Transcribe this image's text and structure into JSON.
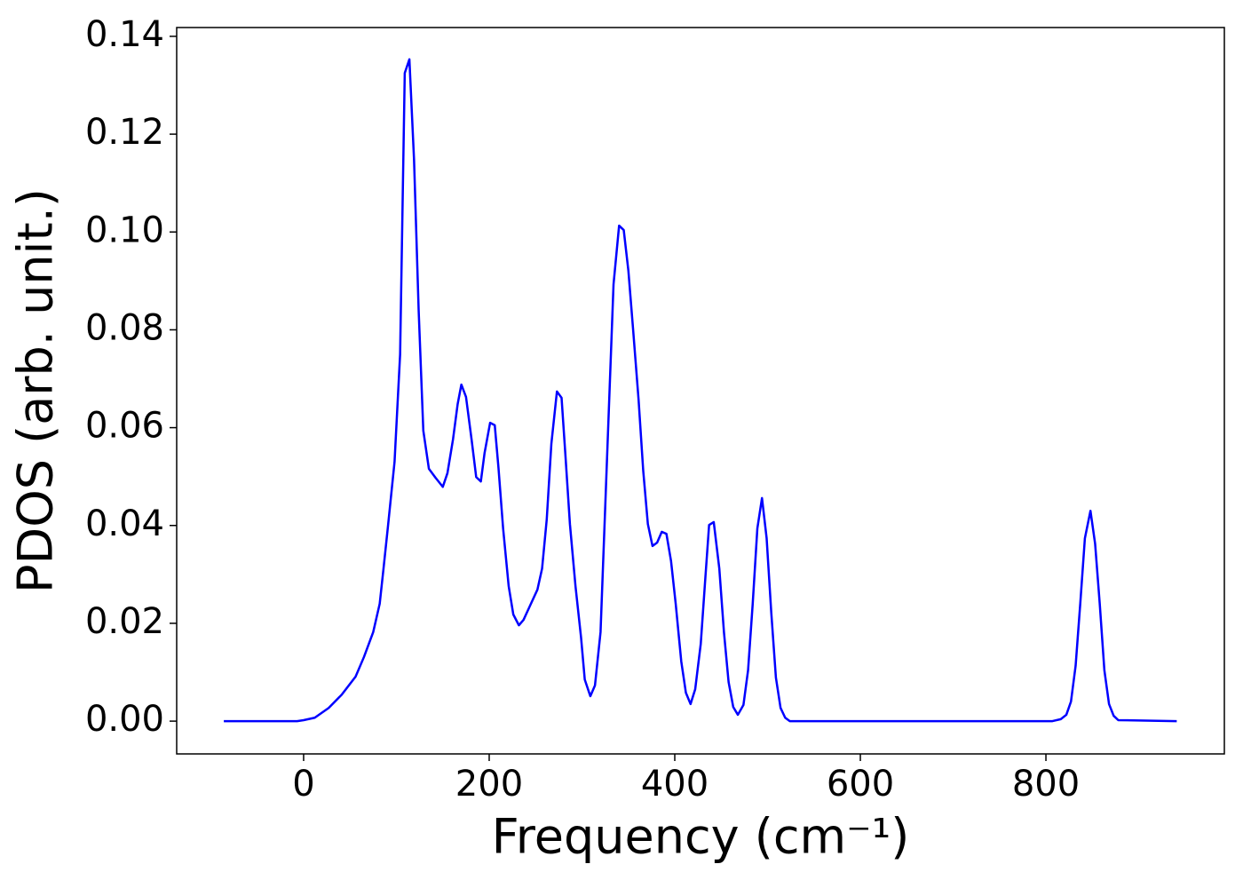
{
  "chart_data": {
    "type": "line",
    "x_label": "Frequency (cm⁻¹)",
    "y_label": "PDOS (arb. unit.)",
    "xlim": [
      -136.8,
      992.3
    ],
    "ylim": [
      -0.0067,
      0.1418
    ],
    "xticks": [
      0,
      200,
      400,
      600,
      800
    ],
    "yticks": [
      {
        "value": 0,
        "label": "0.00"
      },
      {
        "value": 0.02,
        "label": "0.02"
      },
      {
        "value": 0.04,
        "label": "0.04"
      },
      {
        "value": 0.06,
        "label": "0.06"
      },
      {
        "value": 0.08,
        "label": "0.08"
      },
      {
        "value": 0.1,
        "label": "0.10"
      },
      {
        "value": 0.12,
        "label": "0.12"
      },
      {
        "value": 0.14,
        "label": "0.14"
      }
    ],
    "grid": false,
    "series": [
      {
        "color": "#0000ff",
        "x": [
          -86,
          -7,
          0,
          12,
          27,
          41,
          56,
          65,
          75,
          82,
          86,
          91,
          98,
          104,
          109,
          114,
          119,
          124,
          129,
          135,
          142,
          150,
          155,
          161,
          166,
          170,
          175,
          181,
          186,
          191,
          195,
          201,
          206,
          210,
          215,
          221,
          226,
          232,
          237,
          244,
          252,
          257,
          262,
          267,
          273,
          278,
          282,
          287,
          293,
          299,
          303,
          309,
          314,
          320,
          324,
          329,
          334,
          340,
          345,
          350,
          355,
          361,
          366,
          371,
          376,
          381,
          386,
          391,
          396,
          401,
          407,
          412,
          417,
          422,
          428,
          433,
          437,
          442,
          448,
          453,
          458,
          463,
          468,
          474,
          479,
          484,
          489,
          494,
          499,
          504,
          509,
          514,
          519,
          524,
          807,
          816,
          822,
          827,
          832,
          837,
          842,
          848,
          853,
          858,
          863,
          868,
          873,
          878,
          941
        ],
        "values": [
          0,
          0,
          0.0002,
          0.0007,
          0.0027,
          0.0054,
          0.0091,
          0.0131,
          0.0182,
          0.024,
          0.031,
          0.04,
          0.053,
          0.075,
          0.1325,
          0.1353,
          0.1148,
          0.0839,
          0.0594,
          0.0516,
          0.0498,
          0.0479,
          0.0507,
          0.0576,
          0.0648,
          0.0688,
          0.0663,
          0.0576,
          0.0499,
          0.049,
          0.0548,
          0.061,
          0.0605,
          0.0518,
          0.0394,
          0.0276,
          0.0218,
          0.0196,
          0.0207,
          0.0236,
          0.0269,
          0.0312,
          0.0412,
          0.0567,
          0.0674,
          0.0661,
          0.0548,
          0.0403,
          0.0276,
          0.0171,
          0.0085,
          0.0051,
          0.0073,
          0.0182,
          0.0385,
          0.0639,
          0.0893,
          0.1013,
          0.1004,
          0.0921,
          0.0803,
          0.0657,
          0.0512,
          0.0403,
          0.0358,
          0.0365,
          0.0387,
          0.0383,
          0.0327,
          0.024,
          0.0122,
          0.0058,
          0.0035,
          0.0065,
          0.0158,
          0.0294,
          0.0401,
          0.0407,
          0.0312,
          0.0182,
          0.008,
          0.0029,
          0.0013,
          0.0033,
          0.0104,
          0.024,
          0.0394,
          0.0456,
          0.0374,
          0.0222,
          0.0089,
          0.0027,
          0.0007,
          0,
          0,
          0.0004,
          0.0013,
          0.004,
          0.0113,
          0.024,
          0.0374,
          0.043,
          0.0363,
          0.024,
          0.0104,
          0.0035,
          0.0011,
          0.0002,
          0
        ]
      }
    ]
  }
}
